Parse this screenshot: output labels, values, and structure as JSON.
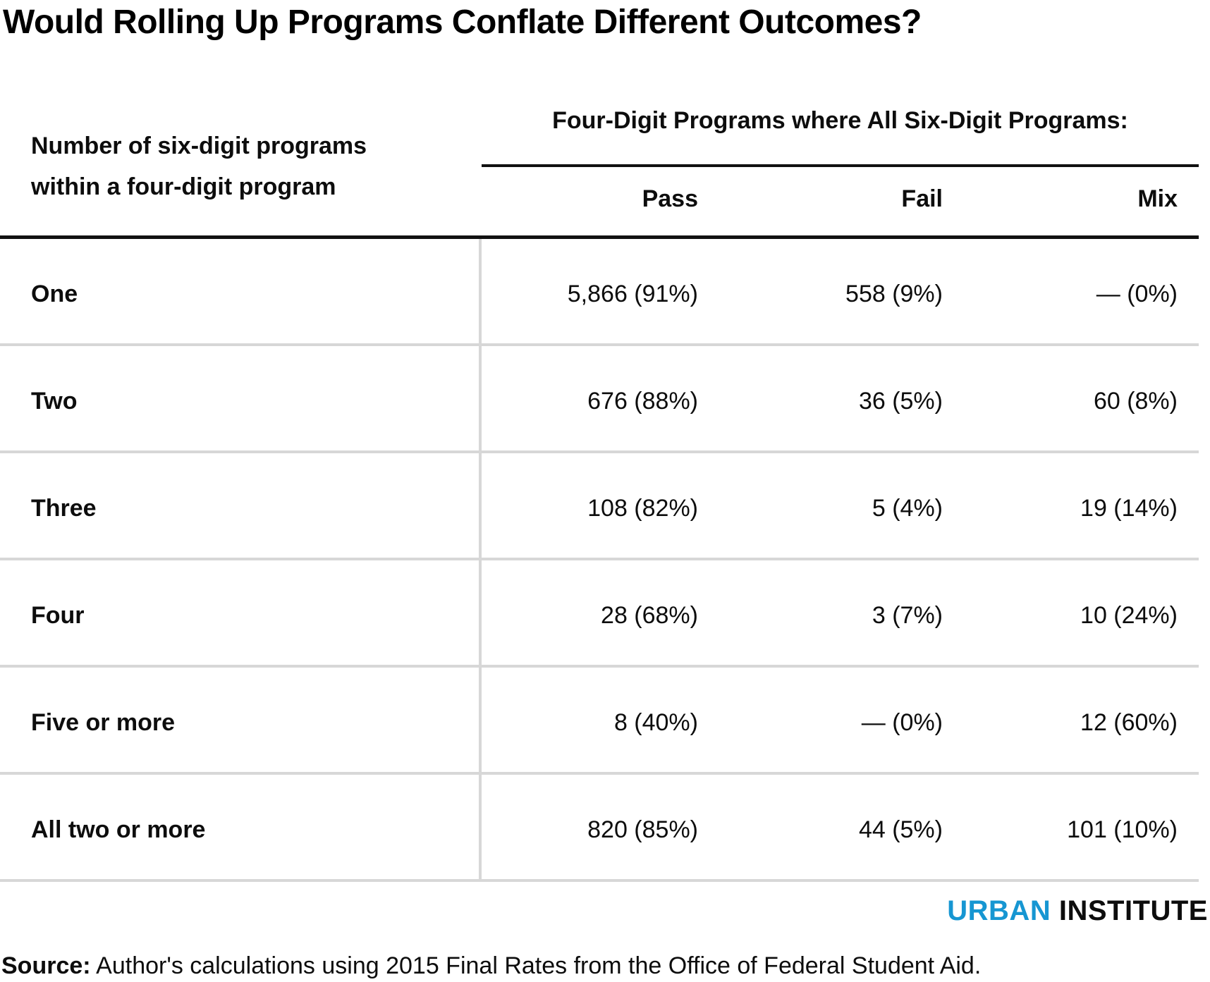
{
  "chart_data": {
    "type": "table",
    "title": "Would Rolling Up Programs Conflate Different Outcomes?",
    "row_header_line1": "Number of six-digit programs",
    "row_header_line2": "within a four-digit program",
    "column_group": "Four-Digit Programs where All Six-Digit Programs:",
    "columns": [
      "Pass",
      "Fail",
      "Mix"
    ],
    "rows": [
      {
        "label": "One",
        "pass": "5,866 (91%)",
        "fail": "558 (9%)",
        "mix": "— (0%)"
      },
      {
        "label": "Two",
        "pass": "676 (88%)",
        "fail": "36 (5%)",
        "mix": "60 (8%)"
      },
      {
        "label": "Three",
        "pass": "108 (82%)",
        "fail": "5 (4%)",
        "mix": "19 (14%)"
      },
      {
        "label": "Four",
        "pass": "28 (68%)",
        "fail": "3 (7%)",
        "mix": "10 (24%)"
      },
      {
        "label": "Five or more",
        "pass": "8 (40%)",
        "fail": "— (0%)",
        "mix": "12 (60%)"
      },
      {
        "label": "All two or more",
        "pass": "820 (85%)",
        "fail": "44 (5%)",
        "mix": "101 (10%)"
      }
    ],
    "layout": "Three numeric columns right-aligned; light gray row dividers; black rule under header group and under sub-column headers"
  },
  "branding": {
    "word1": "URBAN",
    "word2": "INSTITUTE",
    "blue": "#1696d2"
  },
  "source": {
    "label": "Source:",
    "text": " Author's calculations using 2015 Final Rates from the Office of Federal Student Aid."
  },
  "colors": {
    "text": "#0d0d0d",
    "divider_gray": "#d7d7d7",
    "rule_black": "#111111",
    "urban_blue": "#1696d2",
    "background": "#ffffff"
  }
}
